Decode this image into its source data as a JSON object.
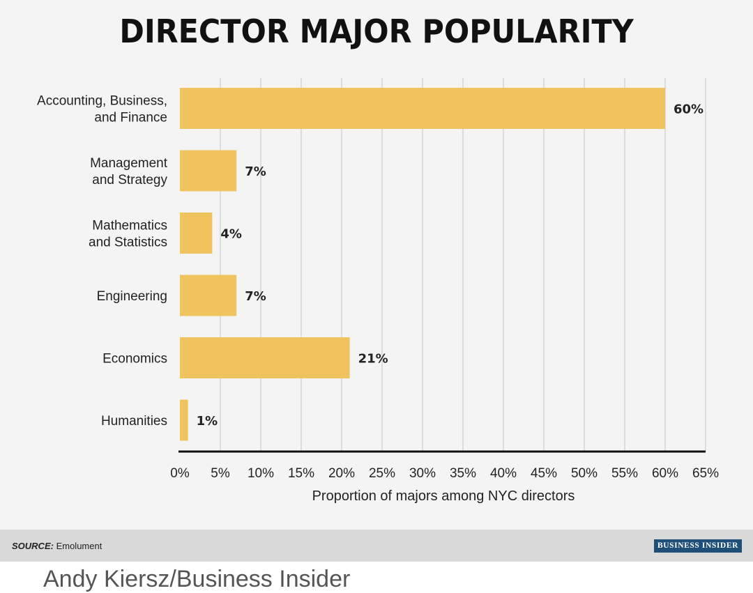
{
  "chart_data": {
    "type": "bar",
    "orientation": "horizontal",
    "title": "DIRECTOR MAJOR POPULARITY",
    "categories": [
      [
        "Accounting, Business,",
        "and Finance"
      ],
      [
        "Management",
        "and Strategy"
      ],
      [
        "Mathematics",
        "and Statistics"
      ],
      [
        "Engineering"
      ],
      [
        "Economics"
      ],
      [
        "Humanities"
      ]
    ],
    "values": [
      60,
      7,
      4,
      7,
      21,
      1
    ],
    "value_labels": [
      "60%",
      "7%",
      "4%",
      "7%",
      "21%",
      "1%"
    ],
    "xlabel": "Proportion of majors among NYC directors",
    "xlim": [
      0,
      65
    ],
    "xticks": [
      0,
      5,
      10,
      15,
      20,
      25,
      30,
      35,
      40,
      45,
      50,
      55,
      60,
      65
    ],
    "xtick_labels": [
      "0%",
      "5%",
      "10%",
      "15%",
      "20%",
      "25%",
      "30%",
      "35%",
      "40%",
      "45%",
      "50%",
      "55%",
      "60%",
      "65%"
    ],
    "grid": true,
    "bar_color": "#f0c35e",
    "grid_color": "#dcdcdc"
  },
  "footer": {
    "source_label": "SOURCE:",
    "source_text": "Emolument",
    "logo_text": "BUSINESS INSIDER",
    "logo_color": "#1f4e79"
  },
  "credit": "Andy Kiersz/Business Insider"
}
